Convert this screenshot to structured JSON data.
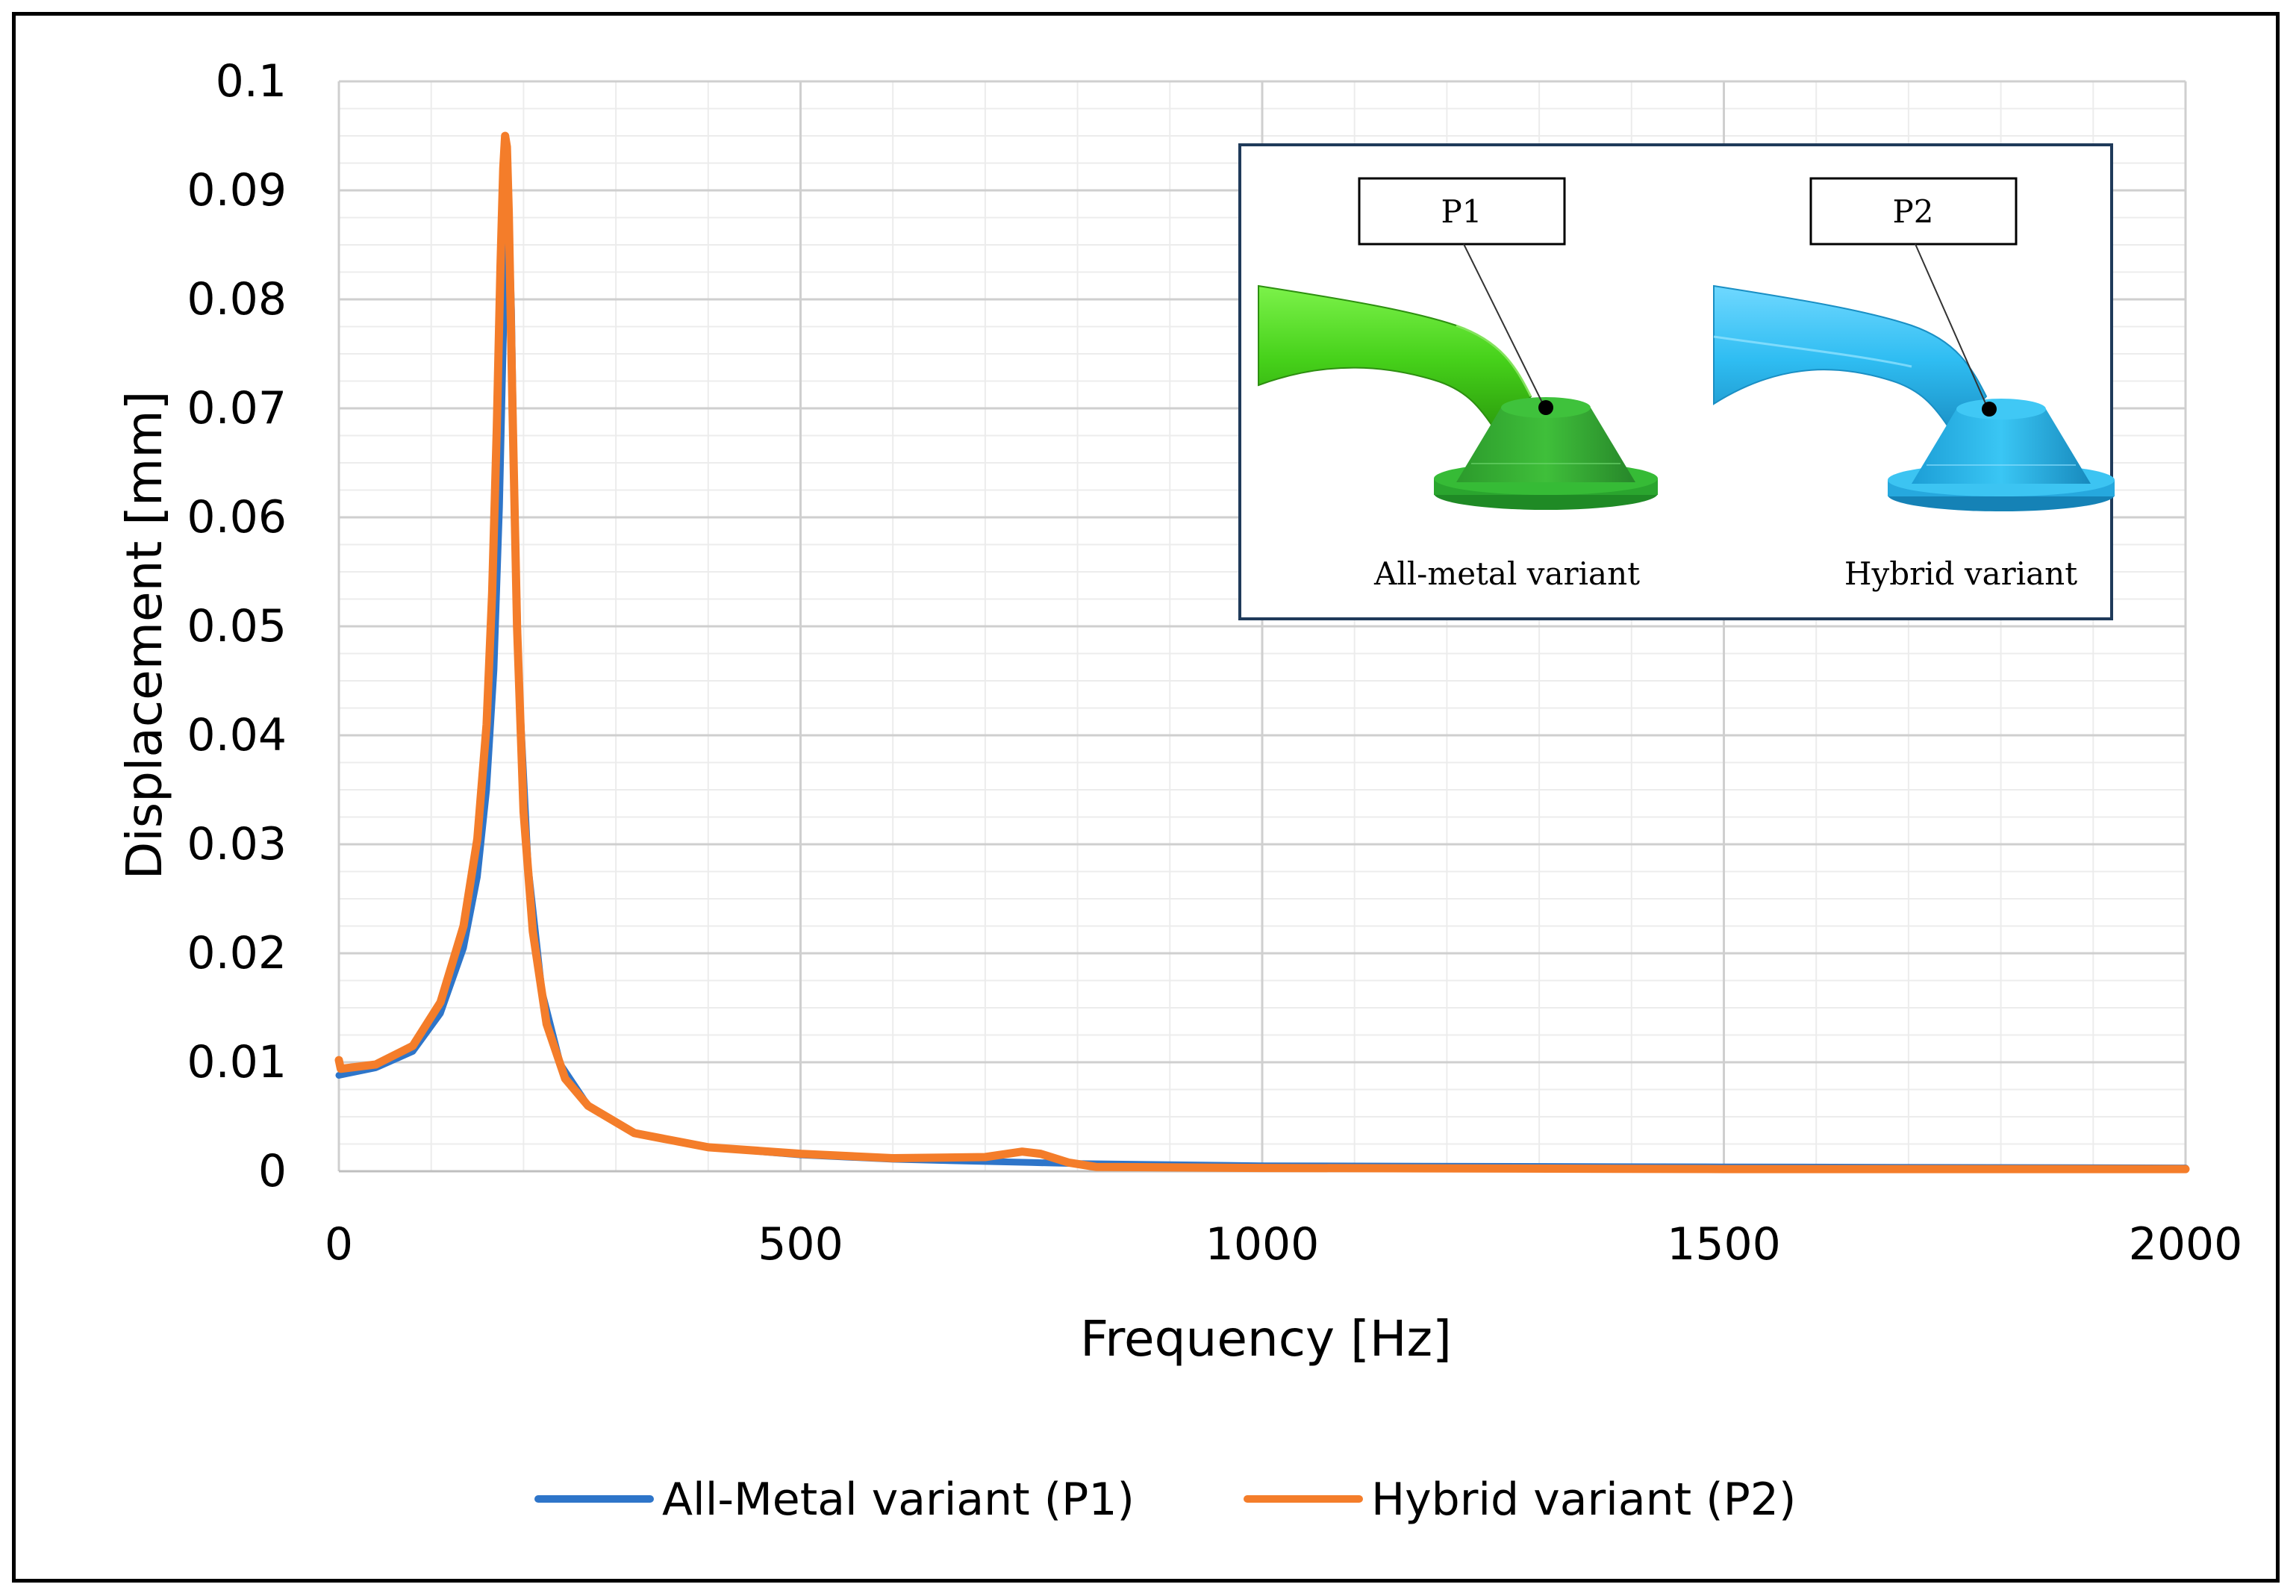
{
  "chart_data": {
    "type": "line",
    "title": "",
    "xlabel": "Frequency [Hz]",
    "ylabel": "Displacement [mm]",
    "xlim": [
      0,
      2000
    ],
    "ylim": [
      0,
      0.1
    ],
    "xticks": [
      0,
      500,
      1000,
      1500,
      2000
    ],
    "xtick_labels": [
      "0",
      "500",
      "1000",
      "1500",
      "2000"
    ],
    "yticks": [
      0,
      0.01,
      0.02,
      0.03,
      0.04,
      0.05,
      0.06,
      0.07,
      0.08,
      0.09,
      0.1
    ],
    "ytick_labels": [
      "0",
      "0.01",
      "0.02",
      "0.03",
      "0.04",
      "0.05",
      "0.06",
      "0.07",
      "0.08",
      "0.09",
      "0.1"
    ],
    "grid": true,
    "legend_position": "bottom",
    "series": [
      {
        "name": "All-Metal variant (P1)",
        "color": "#2e75c9",
        "x": [
          0,
          40,
          80,
          110,
          135,
          150,
          160,
          168,
          174,
          178,
          181,
          184,
          187,
          190,
          195,
          205,
          220,
          240,
          270,
          320,
          400,
          500,
          600,
          700,
          750,
          800,
          1000,
          1500,
          2000
        ],
        "y": [
          0.0088,
          0.0095,
          0.011,
          0.0145,
          0.0205,
          0.027,
          0.035,
          0.046,
          0.061,
          0.076,
          0.085,
          0.0875,
          0.079,
          0.063,
          0.045,
          0.028,
          0.0165,
          0.0098,
          0.006,
          0.0035,
          0.0022,
          0.0015,
          0.0011,
          0.0009,
          0.0008,
          0.0007,
          0.0005,
          0.0004,
          0.0003
        ]
      },
      {
        "name": "Hybrid variant (P2)",
        "color": "#f47d2a",
        "x": [
          0,
          2,
          40,
          80,
          110,
          135,
          150,
          160,
          166,
          171,
          175,
          178,
          180,
          182,
          184,
          188,
          193,
          200,
          210,
          225,
          245,
          270,
          320,
          400,
          500,
          600,
          700,
          740,
          760,
          790,
          820,
          1000,
          1500,
          2000
        ],
        "y": [
          0.0102,
          0.0094,
          0.0098,
          0.0115,
          0.0155,
          0.0225,
          0.0305,
          0.041,
          0.053,
          0.068,
          0.083,
          0.092,
          0.095,
          0.094,
          0.088,
          0.07,
          0.05,
          0.033,
          0.022,
          0.0135,
          0.0085,
          0.006,
          0.0035,
          0.0022,
          0.0016,
          0.0012,
          0.0013,
          0.0018,
          0.0016,
          0.0008,
          0.0004,
          0.0003,
          0.0002,
          0.0002
        ]
      }
    ]
  },
  "inset": {
    "left": {
      "point_label": "P1",
      "caption": "All-metal variant",
      "color": "#3dcc12"
    },
    "right": {
      "point_label": "P2",
      "caption": "Hybrid variant",
      "color": "#22b4ee"
    }
  }
}
